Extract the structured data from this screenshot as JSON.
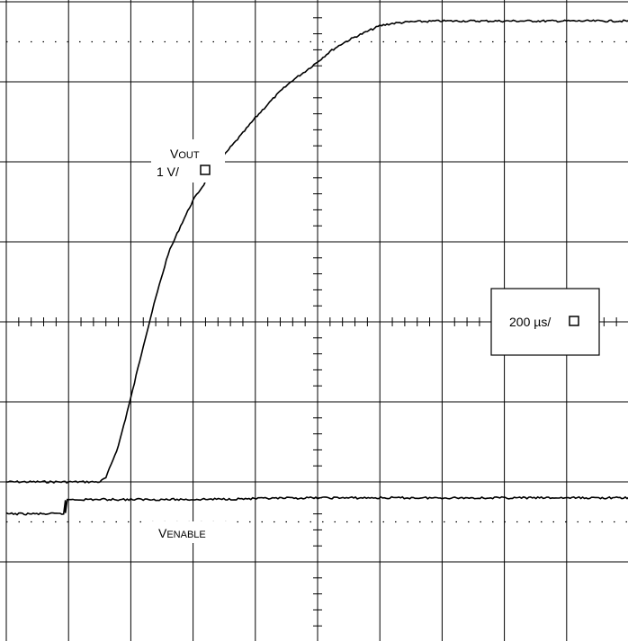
{
  "chart_data": {
    "type": "line",
    "title": "",
    "xlabel": "",
    "ylabel": "",
    "grid": true,
    "divisions": {
      "x": 10,
      "y": 8
    },
    "x_range_div": [
      -5,
      5
    ],
    "y_range_div": [
      -4,
      4
    ],
    "series": [
      {
        "name": "VOUT",
        "label_main": "V",
        "label_sub": "OUT",
        "scale": "1 V/",
        "x_div": [
          -5.0,
          -4.5,
          -4.0,
          -3.5,
          -3.4,
          -3.2,
          -3.0,
          -2.8,
          -2.6,
          -2.4,
          -2.2,
          -2.0,
          -1.8,
          -1.6,
          -1.4,
          -1.2,
          -1.0,
          -0.8,
          -0.6,
          -0.4,
          -0.2,
          0.0,
          0.2,
          0.4,
          0.6,
          0.8,
          1.0,
          1.2,
          1.5,
          2.0,
          3.0,
          4.0,
          5.0
        ],
        "y_div": [
          -2.0,
          -2.0,
          -2.0,
          -2.0,
          -1.95,
          -1.55,
          -0.95,
          -0.3,
          0.3,
          0.85,
          1.2,
          1.52,
          1.75,
          1.98,
          2.18,
          2.36,
          2.55,
          2.72,
          2.88,
          3.02,
          3.13,
          3.25,
          3.38,
          3.48,
          3.56,
          3.63,
          3.7,
          3.73,
          3.75,
          3.76,
          3.76,
          3.76,
          3.76
        ]
      },
      {
        "name": "VENABLE",
        "label_main": "V",
        "label_sub": "ENABLE",
        "x_div": [
          -5.0,
          -4.05,
          -4.05,
          -3.9,
          -3.0,
          -2.0,
          0.0,
          2.0,
          4.0,
          5.0
        ],
        "y_div": [
          -2.4,
          -2.4,
          -2.22,
          -2.22,
          -2.22,
          -2.22,
          -2.2,
          -2.2,
          -2.2,
          -2.2
        ]
      }
    ],
    "timebase": "200 µs/"
  }
}
